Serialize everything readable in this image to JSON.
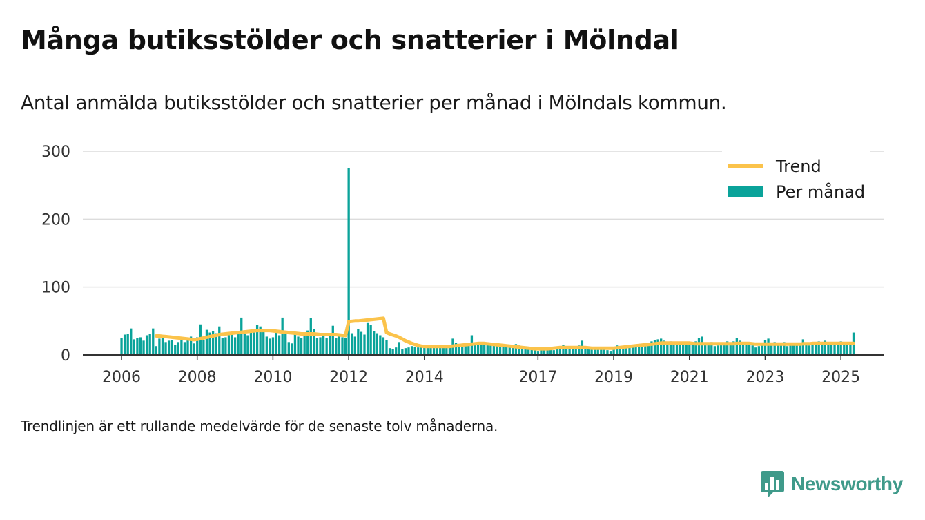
{
  "header": {
    "title": "Många butiksstölder och snatterier i Mölndal",
    "subtitle": "Antal anmälda butiksstölder och snatterier per månad i Mölndals kommun."
  },
  "footnote": "Trendlinjen är ett rullande medelvärde för de senaste tolv månaderna.",
  "brand": {
    "name": "Newsworthy",
    "color": "#3f9a8a",
    "icon": "newsworthy-logo-icon"
  },
  "colors": {
    "bars": "#0aa39a",
    "trend": "#fbc34b",
    "grid": "#dcdcdc",
    "axis": "#333333"
  },
  "chart_data": {
    "type": "bar",
    "legend": {
      "position": "top-right",
      "items": [
        "Trend",
        "Per månad"
      ]
    },
    "ylim": [
      0,
      300
    ],
    "yticks": [
      0,
      100,
      200,
      300
    ],
    "xticks": [
      "2006",
      "2008",
      "2010",
      "2012",
      "2014",
      "2017",
      "2019",
      "2021",
      "2023",
      "2025"
    ],
    "x_start": "2006-01",
    "series": [
      {
        "name": "Per månad",
        "kind": "bar",
        "values": [
          25,
          30,
          31,
          39,
          23,
          25,
          26,
          21,
          29,
          31,
          39,
          13,
          24,
          25,
          19,
          21,
          22,
          15,
          19,
          22,
          19,
          22,
          27,
          17,
          26,
          45,
          22,
          37,
          33,
          35,
          32,
          42,
          25,
          26,
          29,
          30,
          26,
          34,
          55,
          31,
          29,
          33,
          33,
          44,
          42,
          38,
          27,
          24,
          26,
          37,
          29,
          55,
          33,
          19,
          17,
          31,
          27,
          25,
          33,
          36,
          54,
          38,
          25,
          26,
          28,
          25,
          31,
          43,
          25,
          28,
          26,
          25,
          275,
          32,
          27,
          38,
          34,
          30,
          47,
          44,
          35,
          32,
          29,
          26,
          22,
          10,
          9,
          11,
          19,
          9,
          10,
          11,
          13,
          12,
          11,
          12,
          11,
          12,
          13,
          15,
          12,
          11,
          14,
          12,
          13,
          24,
          18,
          16,
          14,
          14,
          15,
          29,
          18,
          15,
          16,
          17,
          18,
          17,
          16,
          15,
          13,
          12,
          13,
          14,
          13,
          16,
          14,
          12,
          10,
          9,
          8,
          8,
          6,
          7,
          9,
          8,
          10,
          7,
          9,
          12,
          15,
          11,
          13,
          12,
          10,
          14,
          21,
          10,
          11,
          12,
          10,
          9,
          8,
          8,
          7,
          6,
          9,
          14,
          12,
          13,
          12,
          11,
          13,
          13,
          15,
          14,
          15,
          16,
          20,
          22,
          23,
          24,
          21,
          18,
          20,
          19,
          17,
          18,
          17,
          16,
          18,
          17,
          20,
          25,
          27,
          18,
          16,
          19,
          13,
          14,
          15,
          17,
          20,
          18,
          20,
          25,
          21,
          16,
          17,
          18,
          14,
          11,
          13,
          15,
          22,
          24,
          18,
          19,
          17,
          16,
          19,
          13,
          16,
          17,
          18,
          16,
          23,
          16,
          14,
          17,
          17,
          20,
          17,
          21,
          18,
          17,
          16,
          17,
          20,
          18,
          16,
          17,
          33
        ]
      },
      {
        "name": "Trend",
        "kind": "line",
        "values": [
          null,
          null,
          null,
          null,
          null,
          null,
          null,
          null,
          null,
          null,
          null,
          28,
          28,
          27.5,
          27,
          26.5,
          26,
          25.5,
          25,
          24.5,
          24,
          23.5,
          23,
          22.5,
          23,
          24,
          25,
          26,
          27,
          28,
          29,
          30,
          30.5,
          31,
          31.5,
          32,
          32.5,
          33,
          33.5,
          34,
          34.5,
          35,
          35.5,
          36,
          36,
          36,
          36,
          36,
          35.5,
          35,
          34.5,
          34,
          33.5,
          33,
          32.5,
          32,
          31.5,
          31,
          31,
          31,
          31,
          31,
          30.5,
          30,
          30,
          30,
          30,
          30,
          30,
          29.5,
          29,
          28.5,
          49,
          49.5,
          50,
          50,
          50.5,
          51,
          51.5,
          52,
          52.5,
          53,
          53.5,
          54,
          33,
          31,
          29.5,
          28,
          26,
          23.5,
          21,
          19,
          17,
          15.5,
          14,
          13,
          12.5,
          12.5,
          12.5,
          12.5,
          12.5,
          12.5,
          12.5,
          12.5,
          12.5,
          13,
          13.5,
          14,
          14.5,
          15,
          15.5,
          16,
          16.5,
          17,
          17,
          17,
          16.5,
          16,
          15.5,
          15,
          14.5,
          14,
          13.5,
          13,
          12.5,
          12,
          11.5,
          11,
          10.5,
          10,
          9.5,
          9,
          9,
          9,
          9,
          9,
          9.5,
          10,
          10.5,
          11,
          11,
          11,
          11,
          11,
          11,
          11,
          11,
          11,
          10.5,
          10,
          10,
          10,
          10,
          10,
          10,
          10,
          10,
          10.5,
          11,
          11.5,
          12,
          12.5,
          13,
          13.5,
          14,
          14.5,
          15,
          15.5,
          16,
          16.5,
          17,
          17.5,
          17.5,
          17.5,
          17.5,
          17.5,
          17.5,
          17.5,
          17.5,
          17.5,
          17.5,
          17,
          16.5,
          16.5,
          16.5,
          16.5,
          16.5,
          16.5,
          16.5,
          16.5,
          16.5,
          16.5,
          16.5,
          16.5,
          16.5,
          17,
          17,
          17,
          17,
          17,
          16.5,
          16,
          16,
          16,
          16,
          16,
          16,
          16,
          16,
          16,
          16,
          16,
          16,
          16,
          16,
          16,
          16.5,
          16.5,
          16.5,
          17,
          17,
          17,
          17,
          17,
          17,
          17,
          17,
          17,
          17,
          17,
          17,
          17,
          17
        ]
      }
    ]
  }
}
